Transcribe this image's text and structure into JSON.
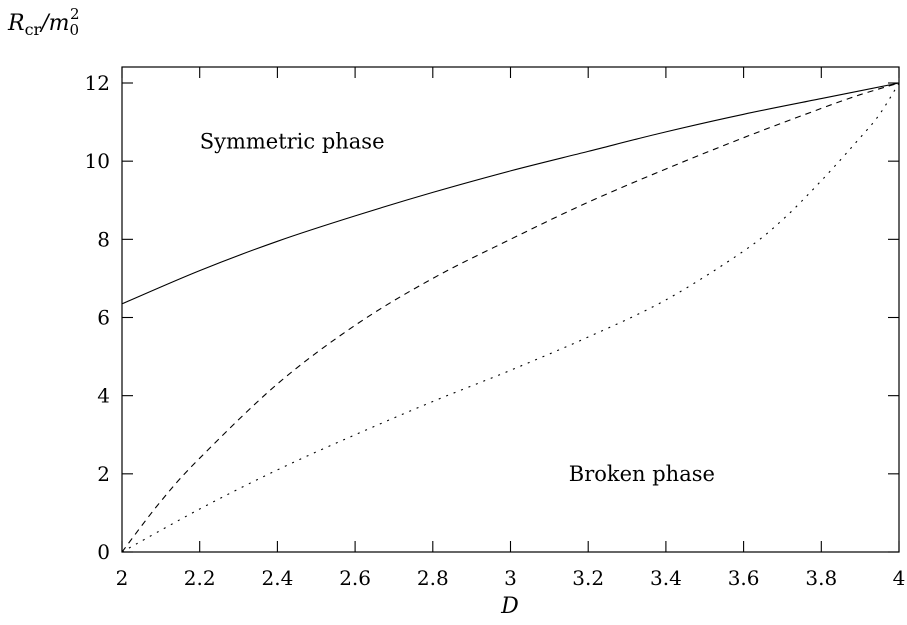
{
  "chart_data": {
    "type": "line",
    "xlabel": "D",
    "ylabel": "R_cr/m_0^2",
    "ylabel_parts": {
      "main": "R",
      "sub": "cr",
      "slash": "/m",
      "sub2": "0",
      "sup": "2"
    },
    "xlim": [
      2,
      4
    ],
    "ylim": [
      0,
      12.5
    ],
    "xticks": [
      2,
      2.2,
      2.4,
      2.6,
      2.8,
      3,
      3.2,
      3.4,
      3.6,
      3.8,
      4
    ],
    "xtick_labels": [
      "2",
      "2.2",
      "2.4",
      "2.6",
      "2.8",
      "3",
      "3.2",
      "3.4",
      "3.6",
      "3.8",
      "4"
    ],
    "yticks": [
      0,
      2,
      4,
      6,
      8,
      10,
      12
    ],
    "ytick_labels": [
      "0",
      "2",
      "4",
      "6",
      "8",
      "10",
      "12"
    ],
    "grid": false,
    "annotations": [
      {
        "text": "Symmetric phase",
        "x": 2.2,
        "y": 10.5
      },
      {
        "text": "Broken phase",
        "x": 3.15,
        "y": 2.0
      }
    ],
    "series": [
      {
        "style": "solid",
        "x": [
          2.0,
          2.2,
          2.4,
          2.6,
          2.8,
          3.0,
          3.2,
          3.4,
          3.6,
          3.8,
          4.0
        ],
        "y": [
          6.35,
          7.2,
          7.95,
          8.6,
          9.2,
          9.75,
          10.25,
          10.75,
          11.2,
          11.6,
          12.0
        ]
      },
      {
        "style": "dashed",
        "x": [
          2.0,
          2.1,
          2.2,
          2.4,
          2.6,
          2.8,
          3.0,
          3.2,
          3.4,
          3.6,
          3.8,
          3.9,
          4.0
        ],
        "y": [
          0.0,
          1.3,
          2.4,
          4.3,
          5.8,
          7.0,
          8.0,
          8.95,
          9.8,
          10.6,
          11.35,
          11.7,
          12.0
        ]
      },
      {
        "style": "dotted",
        "x": [
          2.0,
          2.2,
          2.4,
          2.6,
          2.8,
          3.0,
          3.2,
          3.4,
          3.6,
          3.7,
          3.8,
          3.9,
          3.95,
          4.0
        ],
        "y": [
          0.0,
          1.1,
          2.1,
          3.0,
          3.85,
          4.65,
          5.5,
          6.45,
          7.7,
          8.5,
          9.5,
          10.6,
          11.2,
          12.0
        ]
      }
    ]
  }
}
